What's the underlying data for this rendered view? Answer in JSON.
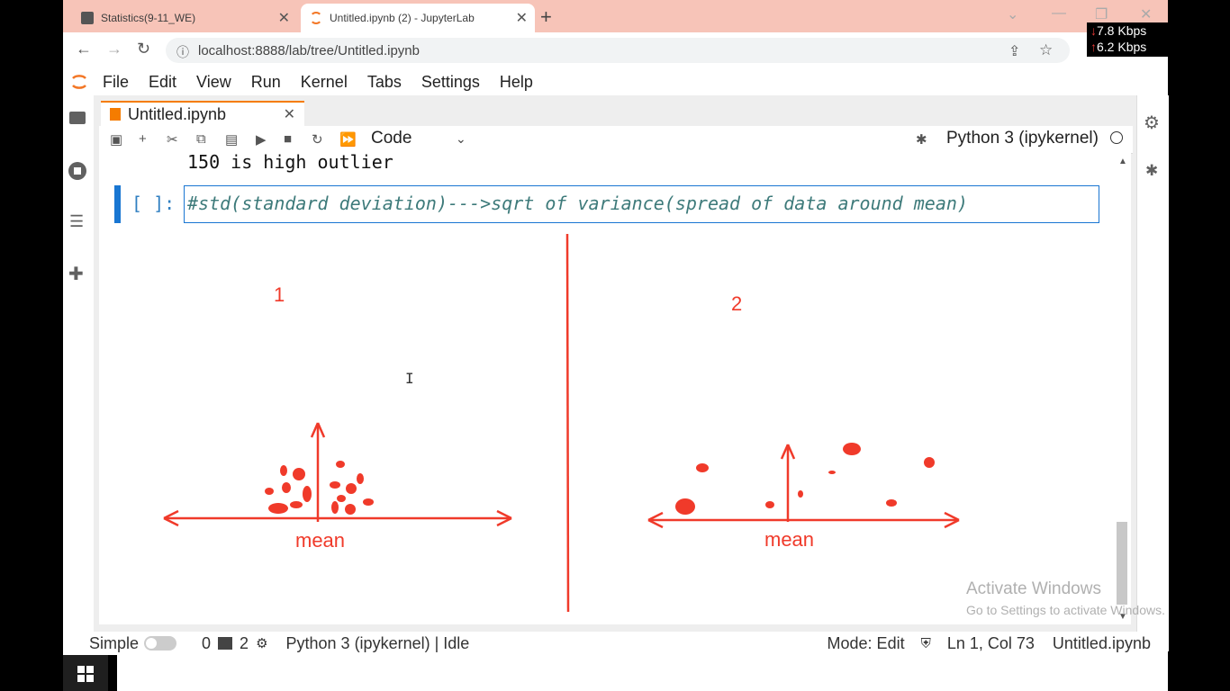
{
  "browser": {
    "tabs": [
      {
        "title": "Statistics(9-11_WE)",
        "active": false
      },
      {
        "title": "Untitled.ipynb (2) - JupyterLab",
        "active": true
      }
    ],
    "url": "localhost:8888/lab/tree/Untitled.ipynb",
    "net": {
      "down": "7.8 Kbps",
      "up": "6.2 Kbps"
    }
  },
  "menu": [
    "File",
    "Edit",
    "View",
    "Run",
    "Kernel",
    "Tabs",
    "Settings",
    "Help"
  ],
  "doc_tab": {
    "title": "Untitled.ipynb"
  },
  "toolbar": {
    "cell_type": "Code",
    "kernel": "Python 3 (ipykernel)"
  },
  "notebook": {
    "output_line": "150 is high outlier",
    "prompt": "[ ]:",
    "code": "#std(standard deviation)--->sqrt of variance(spread of data around mean)"
  },
  "drawing": {
    "label1": "1",
    "label2": "2",
    "mean_left": "mean",
    "mean_right": "mean",
    "ink_color": "#f03a2a"
  },
  "status": {
    "mode_label": "Simple",
    "terminals": "0",
    "kernels": "2",
    "kernel_status": "Python 3 (ipykernel) | Idle",
    "mode": "Mode: Edit",
    "position": "Ln 1, Col 73",
    "file": "Untitled.ipynb"
  },
  "watermark": {
    "line1": "Activate Windows",
    "line2": "Go to Settings to activate Windows."
  }
}
